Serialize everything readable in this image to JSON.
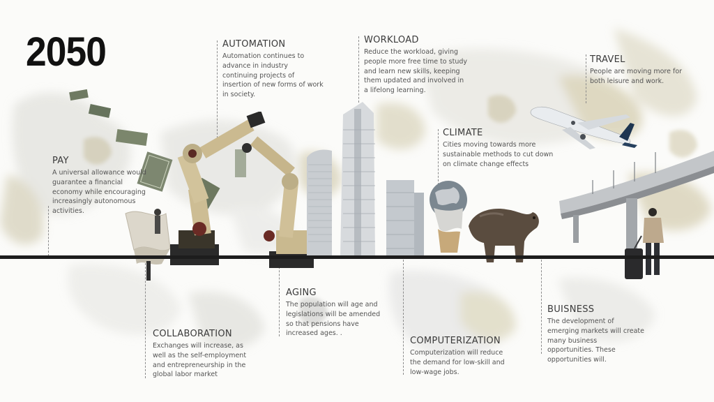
{
  "title": "2050",
  "timeline": {
    "pay": {
      "heading": "PAY",
      "text": "A universal allowance would guarantee a financial economy while encouraging increasingly autonomous activities."
    },
    "collaboration": {
      "heading": "COLLABORATION",
      "text": "Exchanges will increase, as well as the self-employment and entrepreneurship in the global labor market"
    },
    "automation": {
      "heading": "AUTOMATION",
      "text": "Automation continues to advance in industry continuing projects of insertion of new forms of work in society."
    },
    "aging": {
      "heading": "AGING",
      "text": "The population will age and legislations will be amended so that pensions have increased ages. ."
    },
    "workload": {
      "heading": "WORKLOAD",
      "text": "Reduce the workload, giving people more free time to study and learn new skills, keeping them updated and involved in a lifelong learning."
    },
    "computerization": {
      "heading": "COMPUTERIZATION",
      "text": "Computerization will reduce the demand for low-skill and low-wage jobs."
    },
    "climate": {
      "heading": "CLIMATE",
      "text": "Cities moving towards more sustainable methods to cut down on climate change effects"
    },
    "buisness": {
      "heading": "BUISNESS",
      "text": "The development of emerging markets will create many business opportunities. These opportunities will."
    },
    "travel": {
      "heading": "TRAVEL",
      "text": "People are moving more for both leisure and work."
    }
  },
  "illustrations": [
    "dollar-bills",
    "paper-sheet",
    "robot-arm",
    "skyscrapers",
    "melting-globe",
    "bear",
    "airplane",
    "highway-bridge",
    "traveler-with-suitcase"
  ]
}
